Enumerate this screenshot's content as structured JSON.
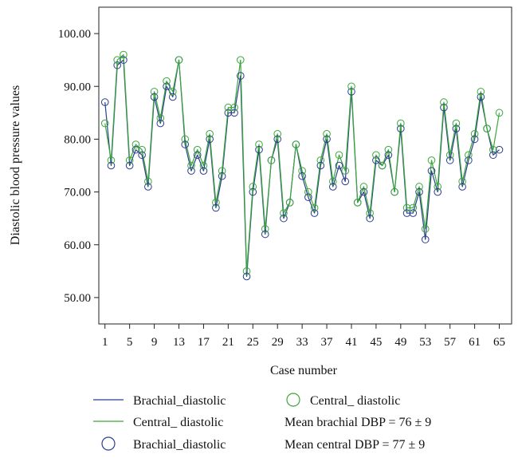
{
  "chart_data": {
    "type": "line",
    "title": "",
    "xlabel": "Case number",
    "ylabel": "Diastolic blood pressure values",
    "xlim": [
      0,
      67
    ],
    "ylim": [
      45,
      105
    ],
    "x_ticks": [
      1,
      5,
      9,
      13,
      17,
      21,
      25,
      29,
      33,
      37,
      41,
      45,
      49,
      53,
      57,
      61,
      65
    ],
    "y_ticks": [
      50,
      60,
      70,
      80,
      90,
      100
    ],
    "y_tick_labels": [
      "50.00",
      "60.00",
      "70.00",
      "80.00",
      "90.00",
      "100.00"
    ],
    "grid": false,
    "legend_position": "bottom",
    "series": [
      {
        "name": "Brachial_diastolic",
        "color": "#2b3d8f",
        "marker": "circle",
        "values": [
          87,
          75,
          94,
          95,
          75,
          78,
          77,
          71,
          88,
          83,
          90,
          88,
          95,
          79,
          74,
          77,
          74,
          80,
          67,
          73,
          85,
          85,
          92,
          54,
          70,
          78,
          62,
          76,
          80,
          65,
          68,
          79,
          73,
          69,
          66,
          75,
          80,
          71,
          75,
          72,
          89,
          68,
          70,
          65,
          76,
          75,
          77,
          70,
          82,
          66,
          66,
          70,
          61,
          74,
          70,
          86,
          76,
          82,
          71,
          76,
          80,
          88,
          82,
          77,
          78
        ]
      },
      {
        "name": "Central_ diastolic",
        "color": "#3aa83a",
        "marker": "circle",
        "values": [
          83,
          76,
          95,
          96,
          76,
          79,
          78,
          72,
          89,
          84,
          91,
          89,
          95,
          80,
          75,
          78,
          75,
          81,
          68,
          74,
          86,
          86,
          95,
          55,
          71,
          79,
          63,
          76,
          81,
          66,
          68,
          79,
          74,
          70,
          67,
          76,
          81,
          72,
          77,
          74,
          90,
          68,
          71,
          66,
          77,
          75,
          78,
          70,
          83,
          67,
          67,
          71,
          63,
          76,
          71,
          87,
          77,
          83,
          72,
          77,
          81,
          89,
          82,
          78,
          85
        ]
      }
    ],
    "legend": {
      "line_brachial": "Brachial_diastolic",
      "line_central": "Central_ diastolic",
      "marker_brachial": "Brachial_diastolic",
      "marker_central": "Central_ diastolic",
      "mean_brachial": "Mean brachial DBP = 76 ± 9",
      "mean_central": "Mean central DBP = 77 ± 9"
    }
  }
}
